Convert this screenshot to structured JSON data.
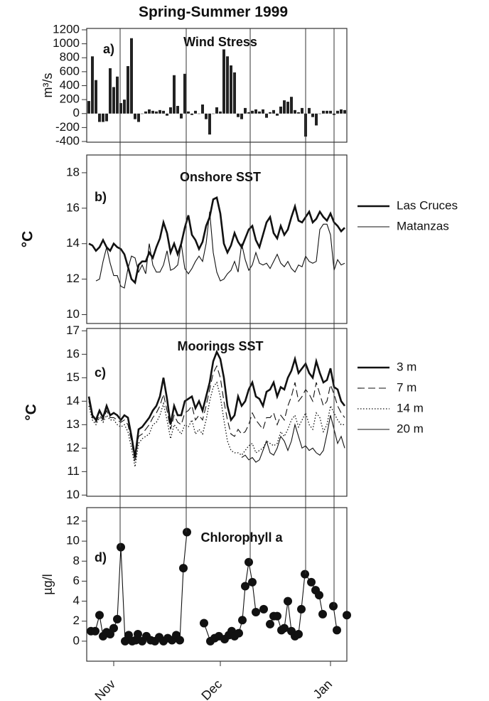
{
  "title": "Spring-Summer 1999",
  "chart_data": [
    {
      "type": "bar",
      "panel_label": "a)",
      "title": "Wind Stress",
      "y_label": "m³/s",
      "color": "#222222",
      "xlim": [
        -7.6,
        65.6
      ],
      "ylim": [
        -410,
        1220
      ],
      "yticks": [
        -400,
        -200,
        0,
        200,
        400,
        600,
        800,
        1000,
        1200
      ],
      "event_lines": [
        1.8,
        20.4,
        38.4,
        54,
        62
      ],
      "x": [
        -7,
        -6,
        -5,
        -4,
        -3,
        -2,
        -1,
        0,
        1,
        2,
        3,
        4,
        5,
        6,
        7,
        8,
        9,
        10,
        11,
        12,
        13,
        14,
        15,
        16,
        17,
        18,
        19,
        20,
        21,
        22,
        23,
        24,
        25,
        26,
        27,
        28,
        29,
        30,
        31,
        32,
        33,
        34,
        35,
        36,
        37,
        38,
        39,
        40,
        41,
        42,
        43,
        44,
        45,
        46,
        47,
        48,
        49,
        50,
        51,
        52,
        53,
        54,
        55,
        56,
        57,
        58,
        59,
        60,
        61,
        62,
        63,
        64,
        65
      ],
      "values": [
        180,
        820,
        480,
        -120,
        -120,
        -110,
        650,
        380,
        530,
        150,
        200,
        680,
        1080,
        -80,
        -120,
        0,
        30,
        60,
        40,
        30,
        50,
        40,
        -30,
        90,
        550,
        110,
        -70,
        570,
        30,
        -20,
        40,
        0,
        130,
        -80,
        -300,
        0,
        90,
        30,
        920,
        820,
        690,
        590,
        -50,
        -80,
        80,
        20,
        40,
        60,
        30,
        60,
        -60,
        20,
        50,
        -30,
        100,
        190,
        170,
        240,
        50,
        20,
        80,
        -330,
        80,
        -50,
        -170,
        0,
        40,
        40,
        40,
        -20,
        40,
        60,
        50
      ]
    },
    {
      "type": "line",
      "panel_label": "b)",
      "title": "Onshore SST",
      "y_label": "°C",
      "legend": "right",
      "xlim": [
        -7.6,
        65.6
      ],
      "ylim": [
        9.5,
        19
      ],
      "yticks": [
        10,
        12,
        14,
        16,
        18
      ],
      "x": [
        -7,
        -6,
        -5,
        -4,
        -3,
        -2,
        -1,
        0,
        1,
        2,
        3,
        4,
        5,
        6,
        7,
        8,
        9,
        10,
        11,
        12,
        13,
        14,
        15,
        16,
        17,
        18,
        19,
        20,
        21,
        22,
        23,
        24,
        25,
        26,
        27,
        28,
        29,
        30,
        31,
        32,
        33,
        34,
        35,
        36,
        37,
        38,
        39,
        40,
        41,
        42,
        43,
        44,
        45,
        46,
        47,
        48,
        49,
        50,
        51,
        52,
        53,
        54,
        55,
        56,
        57,
        58,
        59,
        60,
        61,
        62,
        63,
        64,
        65
      ],
      "series": [
        {
          "name": "Las Cruces",
          "color": "#111111",
          "style": "thick",
          "values": [
            14.0,
            13.9,
            13.6,
            13.8,
            14.2,
            13.8,
            13.6,
            14.0,
            13.8,
            13.7,
            13.4,
            12.7,
            12.0,
            11.8,
            12.8,
            13.0,
            13.0,
            13.5,
            13.2,
            13.8,
            14.3,
            15.2,
            14.6,
            13.5,
            14.0,
            13.4,
            14.0,
            14.9,
            15.6,
            14.5,
            14.2,
            13.7,
            14.1,
            15.0,
            15.5,
            16.5,
            16.6,
            15.7,
            14.0,
            13.5,
            13.9,
            14.6,
            14.1,
            13.8,
            14.3,
            14.8,
            15.0,
            14.2,
            13.8,
            14.5,
            15.2,
            15.5,
            14.6,
            14.3,
            15.0,
            14.5,
            14.8,
            15.5,
            16.1,
            15.3,
            15.2,
            15.5,
            15.8,
            15.2,
            15.4,
            15.8,
            15.5,
            15.3,
            15.7,
            15.2,
            15.0,
            14.7,
            14.9
          ]
        },
        {
          "name": "Matanzas",
          "color": "#111111",
          "style": "thin",
          "values": [
            null,
            null,
            11.9,
            12.0,
            13.0,
            13.8,
            12.9,
            12.2,
            12.2,
            11.6,
            11.5,
            12.6,
            13.3,
            13.2,
            12.4,
            12.8,
            12.3,
            14.0,
            12.8,
            12.4,
            12.4,
            12.8,
            13.6,
            12.5,
            12.6,
            12.8,
            14.0,
            12.6,
            12.3,
            12.6,
            13.0,
            13.3,
            13.0,
            14.0,
            15.8,
            13.5,
            12.4,
            11.9,
            12.0,
            12.3,
            12.5,
            13.0,
            12.4,
            14.0,
            13.1,
            12.5,
            12.8,
            13.5,
            12.9,
            12.8,
            12.9,
            12.6,
            13.0,
            13.4,
            12.9,
            12.7,
            13.0,
            12.6,
            12.4,
            12.8,
            12.7,
            13.3,
            13.0,
            12.9,
            13.0,
            14.8,
            15.1,
            15.1,
            14.5,
            12.5,
            13.1,
            12.8,
            12.9
          ]
        }
      ]
    },
    {
      "type": "line",
      "panel_label": "c)",
      "title": "Moorings SST",
      "y_label": "°C",
      "legend": "right",
      "xlim": [
        -7.6,
        65.6
      ],
      "ylim": [
        9.95,
        17.1
      ],
      "yticks": [
        10,
        11,
        12,
        13,
        14,
        15,
        16,
        17
      ],
      "x": [
        -7,
        -6,
        -5,
        -4,
        -3,
        -2,
        -1,
        0,
        1,
        2,
        3,
        4,
        5,
        6,
        7,
        8,
        9,
        10,
        11,
        12,
        13,
        14,
        15,
        16,
        17,
        18,
        19,
        20,
        21,
        22,
        23,
        24,
        25,
        26,
        27,
        28,
        29,
        30,
        31,
        32,
        33,
        34,
        35,
        36,
        37,
        38,
        39,
        40,
        41,
        42,
        43,
        44,
        45,
        46,
        47,
        48,
        49,
        50,
        51,
        52,
        53,
        54,
        55,
        56,
        57,
        58,
        59,
        60,
        61,
        62,
        63,
        64,
        65
      ],
      "series": [
        {
          "name": "3 m",
          "color": "#111111",
          "style": "thick",
          "values": [
            14.2,
            13.4,
            13.2,
            13.6,
            13.3,
            13.8,
            13.4,
            13.5,
            13.4,
            13.2,
            13.4,
            13.3,
            12.5,
            11.6,
            12.8,
            12.9,
            13.1,
            13.3,
            13.6,
            13.8,
            14.2,
            15.0,
            14.1,
            13.0,
            13.8,
            13.4,
            13.4,
            14.0,
            14.1,
            14.2,
            13.7,
            14.0,
            13.6,
            14.2,
            14.8,
            15.7,
            16.1,
            15.8,
            15.0,
            13.8,
            13.2,
            13.4,
            14.2,
            13.8,
            14.0,
            14.5,
            14.8,
            14.2,
            14.1,
            13.8,
            14.4,
            14.5,
            14.8,
            14.2,
            14.6,
            14.5,
            15.0,
            15.3,
            15.8,
            15.2,
            15.4,
            15.6,
            15.2,
            15.0,
            15.7,
            15.2,
            14.8,
            14.9,
            15.4,
            14.6,
            14.5,
            14.0,
            13.8
          ]
        },
        {
          "name": "7 m",
          "color": "#111111",
          "style": "dashed",
          "values": [
            14.0,
            13.3,
            13.1,
            13.4,
            13.2,
            13.6,
            13.3,
            13.3,
            13.2,
            13.1,
            13.2,
            13.0,
            12.3,
            11.4,
            12.5,
            12.6,
            12.8,
            13.0,
            13.3,
            13.5,
            13.8,
            14.3,
            13.6,
            12.8,
            13.4,
            13.1,
            13.0,
            13.5,
            13.6,
            13.8,
            13.2,
            13.4,
            13.2,
            13.8,
            14.5,
            15.2,
            15.5,
            15.0,
            14.0,
            13.2,
            12.6,
            12.5,
            12.8,
            12.6,
            12.7,
            13.0,
            13.5,
            13.2,
            13.0,
            12.8,
            13.3,
            13.3,
            13.5,
            13.0,
            13.4,
            13.2,
            13.8,
            14.2,
            14.8,
            14.0,
            14.2,
            14.5,
            14.3,
            14.0,
            14.8,
            14.3,
            13.8,
            14.0,
            14.7,
            14.3,
            13.8,
            13.5,
            13.3
          ]
        },
        {
          "name": "14 m",
          "color": "#111111",
          "style": "dotted",
          "values": [
            13.8,
            13.2,
            13.0,
            13.3,
            13.1,
            13.4,
            13.2,
            13.2,
            13.0,
            12.9,
            13.0,
            12.7,
            12.0,
            11.2,
            12.2,
            12.4,
            12.5,
            12.6,
            13.0,
            13.1,
            13.4,
            13.9,
            13.2,
            12.4,
            13.0,
            12.8,
            12.6,
            13.0,
            12.9,
            13.2,
            12.6,
            12.8,
            12.6,
            13.2,
            14.0,
            14.6,
            14.8,
            14.2,
            13.2,
            12.3,
            11.9,
            11.8,
            11.8,
            11.7,
            11.9,
            12.1,
            12.2,
            11.8,
            11.9,
            12.0,
            12.3,
            12.2,
            12.1,
            12.2,
            12.7,
            12.5,
            12.8,
            13.2,
            13.4,
            12.9,
            13.2,
            13.5,
            13.0,
            12.8,
            13.5,
            13.3,
            12.7,
            13.0,
            13.8,
            13.5,
            13.2,
            13.0,
            13.0
          ]
        },
        {
          "name": "20 m",
          "color": "#111111",
          "style": "thin",
          "values": [
            null,
            null,
            null,
            null,
            null,
            null,
            null,
            null,
            null,
            null,
            null,
            null,
            null,
            null,
            null,
            null,
            null,
            null,
            null,
            null,
            null,
            null,
            null,
            null,
            null,
            null,
            null,
            null,
            null,
            null,
            null,
            null,
            null,
            null,
            null,
            null,
            null,
            null,
            null,
            null,
            null,
            null,
            null,
            11.6,
            11.7,
            11.5,
            11.6,
            11.4,
            11.5,
            11.9,
            12.3,
            11.8,
            11.7,
            12.0,
            12.5,
            12.3,
            11.9,
            12.3,
            13.0,
            12.5,
            12.0,
            12.1,
            11.9,
            12.0,
            11.8,
            11.7,
            11.9,
            12.6,
            13.4,
            12.8,
            12.2,
            12.5,
            12.0
          ]
        }
      ]
    },
    {
      "type": "line",
      "markers": true,
      "panel_label": "d)",
      "title": "Chlorophyll a",
      "y_label": "µg/l",
      "xlim": [
        -7.6,
        65.6
      ],
      "ylim": [
        -2,
        13.35
      ],
      "yticks": [
        0,
        2,
        4,
        6,
        8,
        10,
        12
      ],
      "xticks": [
        {
          "value": 0,
          "label": "Nov"
        },
        {
          "value": 30,
          "label": "Dec"
        },
        {
          "value": 61,
          "label": "Jan"
        }
      ],
      "x": [
        -6.4,
        -5.2,
        -4,
        -3,
        -2,
        -1,
        0,
        1,
        2,
        3.2,
        4.2,
        5.2,
        6.2,
        6.8,
        8,
        9.2,
        10.4,
        11.6,
        12.8,
        14,
        15.2,
        16.4,
        17.6,
        18.6,
        19.6,
        20.6,
        null,
        25.4,
        27.2,
        28.4,
        29.6,
        31.2,
        32.4,
        33.2,
        34,
        35.2,
        36.2,
        37,
        38,
        39,
        40,
        null,
        42.2,
        null,
        44,
        45,
        46,
        47.2,
        48,
        49,
        50,
        51,
        52,
        52.8,
        53.8,
        55.6,
        56.8,
        57.8,
        58.8,
        null,
        61.8,
        62.8,
        null,
        65.6
      ],
      "series": [
        {
          "color": "#111111",
          "style": "thin",
          "values": [
            1.0,
            1.0,
            2.6,
            0.5,
            0.9,
            0.7,
            1.3,
            2.2,
            9.4,
            0,
            0.6,
            0,
            0.1,
            0.7,
            0,
            0.5,
            0.1,
            0,
            0.4,
            0,
            0.3,
            0.1,
            0.6,
            0.1,
            7.3,
            10.9,
            null,
            1.8,
            0,
            0.3,
            0.5,
            0.2,
            0.6,
            1.0,
            0.5,
            0.8,
            2.1,
            5.5,
            7.9,
            5.9,
            2.9,
            null,
            3.2,
            null,
            1.7,
            2.5,
            2.5,
            1.1,
            1.3,
            4.0,
            1.0,
            0.5,
            0.7,
            3.2,
            6.7,
            5.9,
            5.1,
            4.6,
            2.7,
            null,
            3.5,
            1.1,
            null,
            2.6
          ]
        }
      ]
    }
  ]
}
